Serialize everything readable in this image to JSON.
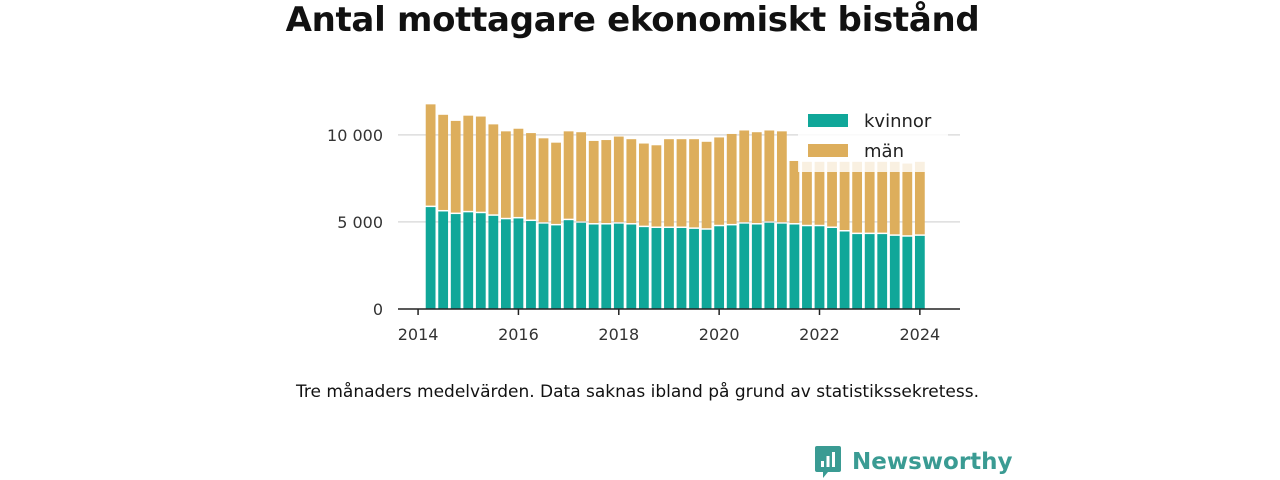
{
  "chart_data": {
    "type": "bar",
    "stacked": true,
    "title": "Antal mottagare ekonomiskt bistånd",
    "note": "Tre månaders medelvärden. Data saknas ibland på grund av statistikssekretess.",
    "x_start": 2014.25,
    "x_step": 0.25,
    "xlim": [
      2013.6,
      2024.8
    ],
    "ylim": [
      0,
      12000
    ],
    "x_ticks": [
      2014,
      2016,
      2018,
      2020,
      2022,
      2024
    ],
    "x_tick_labels": [
      "2014",
      "2016",
      "2018",
      "2020",
      "2022",
      "2024"
    ],
    "y_ticks": [
      0,
      5000,
      10000
    ],
    "y_tick_labels": [
      "0",
      "5 000",
      "10 000"
    ],
    "grid": true,
    "legend": "top-right",
    "series": [
      {
        "name": "kvinnor",
        "color": "#10a799",
        "values": [
          5850,
          5600,
          5450,
          5550,
          5500,
          5350,
          5150,
          5200,
          5050,
          4900,
          4800,
          5100,
          4950,
          4850,
          4850,
          4900,
          4850,
          4700,
          4650,
          4650,
          4650,
          4600,
          4550,
          4750,
          4800,
          4900,
          4850,
          4950,
          4900,
          4850,
          4750,
          4750,
          4650,
          4450,
          4300,
          4300,
          4300,
          4200,
          4150,
          4200
        ]
      },
      {
        "name": "män",
        "color": "#ddae5c",
        "values": [
          5900,
          5550,
          5350,
          5550,
          5550,
          5250,
          5050,
          5150,
          5050,
          4900,
          4750,
          5100,
          5200,
          4800,
          4850,
          5000,
          4900,
          4800,
          4750,
          5100,
          5100,
          5150,
          5050,
          5100,
          5250,
          5350,
          5300,
          5300,
          5300,
          3650,
          3700,
          3700,
          3800,
          4000,
          4150,
          4150,
          4150,
          4250,
          4200,
          4250
        ]
      }
    ]
  },
  "brand": {
    "name": "Newsworthy"
  }
}
